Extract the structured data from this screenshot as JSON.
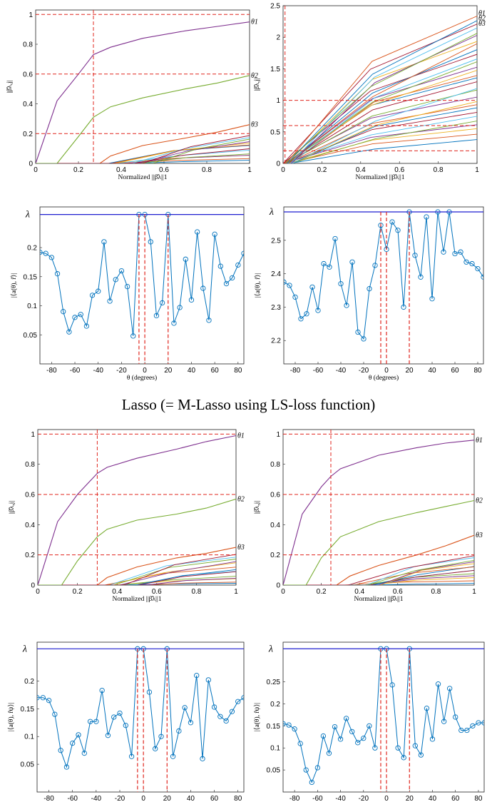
{
  "caption": "Lasso (= M-Lasso using LS-loss function)",
  "colors": {
    "purple": "#7e2f8e",
    "green": "#77ac30",
    "orange": "#d95319",
    "blue": "#0072bd",
    "red": "#e0261e",
    "lam": "#1f1fd0",
    "gold": "#edb120",
    "cyan": "#4dbeee",
    "maroon": "#a2142f"
  },
  "chart_data": [
    {
      "type": "line",
      "id": "p1",
      "xlabel": "Normalized ||β̂λ||1",
      "ylabel": "|β̂λ,j|",
      "xlim": [
        0,
        1
      ],
      "ylim": [
        0,
        1.03
      ],
      "xticks": [
        "0",
        "0.2",
        "0.4",
        "0.6",
        "0.8",
        "1"
      ],
      "yticks": [
        "0",
        "0.2",
        "0.4",
        "0.6",
        "0.8",
        "1"
      ],
      "hlines": [
        1.0,
        0.6,
        0.2
      ],
      "vlines": [
        0.27
      ],
      "labels": [
        "θ1",
        "θ2",
        "θ3"
      ],
      "series": [
        {
          "color": "purple",
          "x": [
            0,
            0.1,
            0.2,
            0.27,
            0.35,
            0.5,
            0.7,
            0.85,
            1.0
          ],
          "y": [
            0,
            0.42,
            0.6,
            0.73,
            0.78,
            0.84,
            0.89,
            0.92,
            0.95
          ]
        },
        {
          "color": "green",
          "x": [
            0,
            0.1,
            0.2,
            0.27,
            0.35,
            0.5,
            0.7,
            0.85,
            1.0
          ],
          "y": [
            0,
            0,
            0.18,
            0.31,
            0.38,
            0.44,
            0.5,
            0.54,
            0.59
          ]
        },
        {
          "color": "orange",
          "x": [
            0.3,
            0.35,
            0.5,
            0.7,
            0.85,
            1.0
          ],
          "y": [
            0,
            0.05,
            0.12,
            0.17,
            0.21,
            0.26
          ]
        }
      ],
      "bundle": {
        "count": 14,
        "x0": [
          0.33,
          0.55
        ],
        "x1": 1.0,
        "y1": [
          0.02,
          0.19
        ]
      }
    },
    {
      "type": "line",
      "id": "p2",
      "xlabel": "Normalized ||β̂λ||1",
      "ylabel": "|β̂λ,j|",
      "xlim": [
        0,
        1
      ],
      "ylim": [
        0,
        2.5
      ],
      "xticks": [
        "0",
        "0.2",
        "0.4",
        "0.6",
        "0.8",
        "1"
      ],
      "yticks": [
        "0",
        "0.5",
        "1",
        "1.5",
        "2",
        "2.5"
      ],
      "hlines": [
        1.0,
        0.6,
        0.2
      ],
      "vlines": [
        0.01
      ],
      "labels": [
        "θ1",
        "θ2",
        "θ3"
      ],
      "bundle": {
        "count": 30,
        "x0": [
          0,
          0.05
        ],
        "x1": 1.0,
        "y1": [
          0.4,
          2.35
        ]
      }
    },
    {
      "type": "line",
      "id": "p3",
      "xlabel": "θ (degrees)",
      "ylabel": "|⟨a(θ), r̂⟩|",
      "xlim": [
        -90,
        85
      ],
      "ylim": [
        0.0,
        0.27
      ],
      "lambda": 0.257,
      "xticks": [
        "-80",
        "-60",
        "-40",
        "-20",
        "0",
        "20",
        "40",
        "60",
        "80"
      ],
      "yticks": [
        "0.05",
        "0.1",
        "0.15",
        "0.2"
      ],
      "vlines": [
        -5,
        0,
        20
      ],
      "lambda_label": "λ",
      "x": [
        -90,
        -85,
        -80,
        -75,
        -70,
        -65,
        -60,
        -55,
        -50,
        -45,
        -40,
        -35,
        -30,
        -25,
        -20,
        -15,
        -10,
        -5,
        0,
        5,
        10,
        15,
        20,
        25,
        30,
        35,
        40,
        45,
        50,
        55,
        60,
        65,
        70,
        75,
        80,
        85
      ],
      "y": [
        0.192,
        0.19,
        0.183,
        0.155,
        0.09,
        0.055,
        0.08,
        0.085,
        0.065,
        0.118,
        0.125,
        0.21,
        0.108,
        0.145,
        0.16,
        0.133,
        0.048,
        0.257,
        0.257,
        0.21,
        0.083,
        0.105,
        0.257,
        0.07,
        0.097,
        0.18,
        0.11,
        0.227,
        0.13,
        0.075,
        0.223,
        0.168,
        0.138,
        0.148,
        0.17,
        0.19
      ]
    },
    {
      "type": "line",
      "id": "p4",
      "xlabel": "θ (degrees)",
      "ylabel": "|⟨a(θ), r̂⟩|",
      "xlim": [
        -90,
        85
      ],
      "ylim": [
        2.13,
        2.6
      ],
      "lambda": 2.585,
      "xticks": [
        "-80",
        "-60",
        "-40",
        "-20",
        "0",
        "20",
        "40",
        "60",
        "80"
      ],
      "yticks": [
        "2.2",
        "2.3",
        "2.4",
        "2.5"
      ],
      "vlines": [
        -5,
        0,
        20
      ],
      "lambda_label": "λ",
      "x": [
        -90,
        -85,
        -80,
        -75,
        -70,
        -65,
        -60,
        -55,
        -50,
        -45,
        -40,
        -35,
        -30,
        -25,
        -20,
        -15,
        -10,
        -5,
        0,
        5,
        10,
        15,
        20,
        25,
        30,
        35,
        40,
        45,
        50,
        55,
        60,
        65,
        70,
        75,
        80,
        85
      ],
      "y": [
        2.375,
        2.365,
        2.33,
        2.265,
        2.28,
        2.36,
        2.29,
        2.43,
        2.42,
        2.505,
        2.37,
        2.305,
        2.435,
        2.225,
        2.205,
        2.355,
        2.425,
        2.545,
        2.473,
        2.555,
        2.53,
        2.3,
        2.585,
        2.455,
        2.39,
        2.57,
        2.325,
        2.585,
        2.465,
        2.585,
        2.46,
        2.465,
        2.435,
        2.43,
        2.415,
        2.39
      ]
    },
    {
      "type": "line",
      "id": "p5",
      "xlabel": "Normalized ||β̂λ||1",
      "ylabel": "|β̂λ,j|",
      "xlim": [
        0,
        1
      ],
      "ylim": [
        0,
        1.03
      ],
      "xticks": [
        "0",
        "0.2",
        "0.4",
        "0.6",
        "0.8",
        "1"
      ],
      "yticks": [
        "0",
        "0.2",
        "0.4",
        "0.6",
        "0.8",
        "1"
      ],
      "hlines": [
        1.0,
        0.6,
        0.2
      ],
      "vlines": [
        0.3
      ],
      "labels": [
        "θ1",
        "θ2",
        "θ3"
      ],
      "series": [
        {
          "color": "purple",
          "x": [
            0,
            0.1,
            0.2,
            0.3,
            0.35,
            0.5,
            0.7,
            0.85,
            1.0
          ],
          "y": [
            0,
            0.42,
            0.6,
            0.74,
            0.78,
            0.84,
            0.9,
            0.95,
            0.99
          ]
        },
        {
          "color": "green",
          "x": [
            0,
            0.12,
            0.2,
            0.3,
            0.35,
            0.5,
            0.7,
            0.85,
            1.0
          ],
          "y": [
            0,
            0,
            0.16,
            0.32,
            0.37,
            0.43,
            0.47,
            0.51,
            0.57
          ]
        },
        {
          "color": "orange",
          "x": [
            0.3,
            0.35,
            0.5,
            0.7,
            0.85,
            1.0
          ],
          "y": [
            0,
            0.05,
            0.12,
            0.18,
            0.21,
            0.25
          ]
        }
      ],
      "bundle": {
        "count": 14,
        "x0": [
          0.33,
          0.55
        ],
        "x1": 1.0,
        "y1": [
          0.01,
          0.2
        ]
      }
    },
    {
      "type": "line",
      "id": "p6",
      "xlabel": "Normalized ||β̂λ||1",
      "ylabel": "|β̂λ,j|",
      "xlim": [
        0,
        1
      ],
      "ylim": [
        0,
        1.03
      ],
      "xticks": [
        "0",
        "0.2",
        "0.4",
        "0.6",
        "0.8",
        "1"
      ],
      "yticks": [
        "0",
        "0.2",
        "0.4",
        "0.6",
        "0.8",
        "1"
      ],
      "hlines": [
        1.0,
        0.6,
        0.2
      ],
      "vlines": [
        0.25
      ],
      "labels": [
        "θ1",
        "θ2",
        "θ3"
      ],
      "series": [
        {
          "color": "purple",
          "x": [
            0,
            0.1,
            0.2,
            0.25,
            0.3,
            0.5,
            0.7,
            0.85,
            1.0
          ],
          "y": [
            0,
            0.47,
            0.65,
            0.72,
            0.77,
            0.86,
            0.91,
            0.94,
            0.96
          ]
        },
        {
          "color": "green",
          "x": [
            0,
            0.12,
            0.2,
            0.25,
            0.3,
            0.5,
            0.7,
            0.85,
            1.0
          ],
          "y": [
            0,
            0,
            0.18,
            0.25,
            0.32,
            0.42,
            0.48,
            0.52,
            0.56
          ]
        },
        {
          "color": "orange",
          "x": [
            0.28,
            0.35,
            0.5,
            0.7,
            0.85,
            1.0
          ],
          "y": [
            0,
            0.06,
            0.13,
            0.2,
            0.26,
            0.33
          ]
        }
      ],
      "bundle": {
        "count": 14,
        "x0": [
          0.3,
          0.55
        ],
        "x1": 1.0,
        "y1": [
          0.02,
          0.2
        ]
      }
    },
    {
      "type": "line",
      "id": "p7",
      "xlabel": "θ (degrees)",
      "ylabel": "|⟨a(θ), r̂ψ⟩|",
      "xlim": [
        -90,
        85
      ],
      "ylim": [
        0.0,
        0.27
      ],
      "lambda": 0.258,
      "xticks": [
        "-80",
        "-60",
        "-40",
        "-20",
        "0",
        "20",
        "40",
        "60",
        "80"
      ],
      "yticks": [
        "0.05",
        "0.1",
        "0.15",
        "0.2"
      ],
      "vlines": [
        -5,
        0,
        20
      ],
      "lambda_label": "λ",
      "x": [
        -90,
        -85,
        -80,
        -75,
        -70,
        -65,
        -60,
        -55,
        -50,
        -45,
        -40,
        -35,
        -30,
        -25,
        -20,
        -15,
        -10,
        -5,
        0,
        5,
        10,
        15,
        20,
        25,
        30,
        35,
        40,
        45,
        50,
        55,
        60,
        65,
        70,
        75,
        80,
        85
      ],
      "y": [
        0.17,
        0.17,
        0.165,
        0.14,
        0.075,
        0.045,
        0.088,
        0.103,
        0.07,
        0.127,
        0.127,
        0.183,
        0.102,
        0.135,
        0.142,
        0.12,
        0.064,
        0.258,
        0.258,
        0.18,
        0.078,
        0.1,
        0.258,
        0.064,
        0.11,
        0.152,
        0.125,
        0.21,
        0.06,
        0.202,
        0.153,
        0.136,
        0.128,
        0.145,
        0.163,
        0.17
      ]
    },
    {
      "type": "line",
      "id": "p8",
      "xlabel": "θ (degrees)",
      "ylabel": "|⟨a(θ), r̂ψ⟩|",
      "xlim": [
        -90,
        85
      ],
      "ylim": [
        0.0,
        0.34
      ],
      "lambda": 0.325,
      "xticks": [
        "-80",
        "-60",
        "-40",
        "-20",
        "0",
        "20",
        "40",
        "60",
        "80"
      ],
      "yticks": [
        "0.05",
        "0.1",
        "0.15",
        "0.2",
        "0.25"
      ],
      "vlines": [
        -5,
        0,
        20
      ],
      "lambda_label": "λ",
      "x": [
        -90,
        -85,
        -80,
        -75,
        -70,
        -65,
        -60,
        -55,
        -50,
        -45,
        -40,
        -35,
        -30,
        -25,
        -20,
        -15,
        -10,
        -5,
        0,
        5,
        10,
        15,
        20,
        25,
        30,
        35,
        40,
        45,
        50,
        55,
        60,
        65,
        70,
        75,
        80,
        85
      ],
      "y": [
        0.155,
        0.152,
        0.143,
        0.11,
        0.05,
        0.022,
        0.055,
        0.127,
        0.088,
        0.148,
        0.12,
        0.167,
        0.137,
        0.112,
        0.122,
        0.15,
        0.1,
        0.325,
        0.325,
        0.243,
        0.1,
        0.078,
        0.325,
        0.105,
        0.084,
        0.19,
        0.12,
        0.245,
        0.16,
        0.235,
        0.17,
        0.14,
        0.14,
        0.15,
        0.157,
        0.157
      ]
    }
  ]
}
